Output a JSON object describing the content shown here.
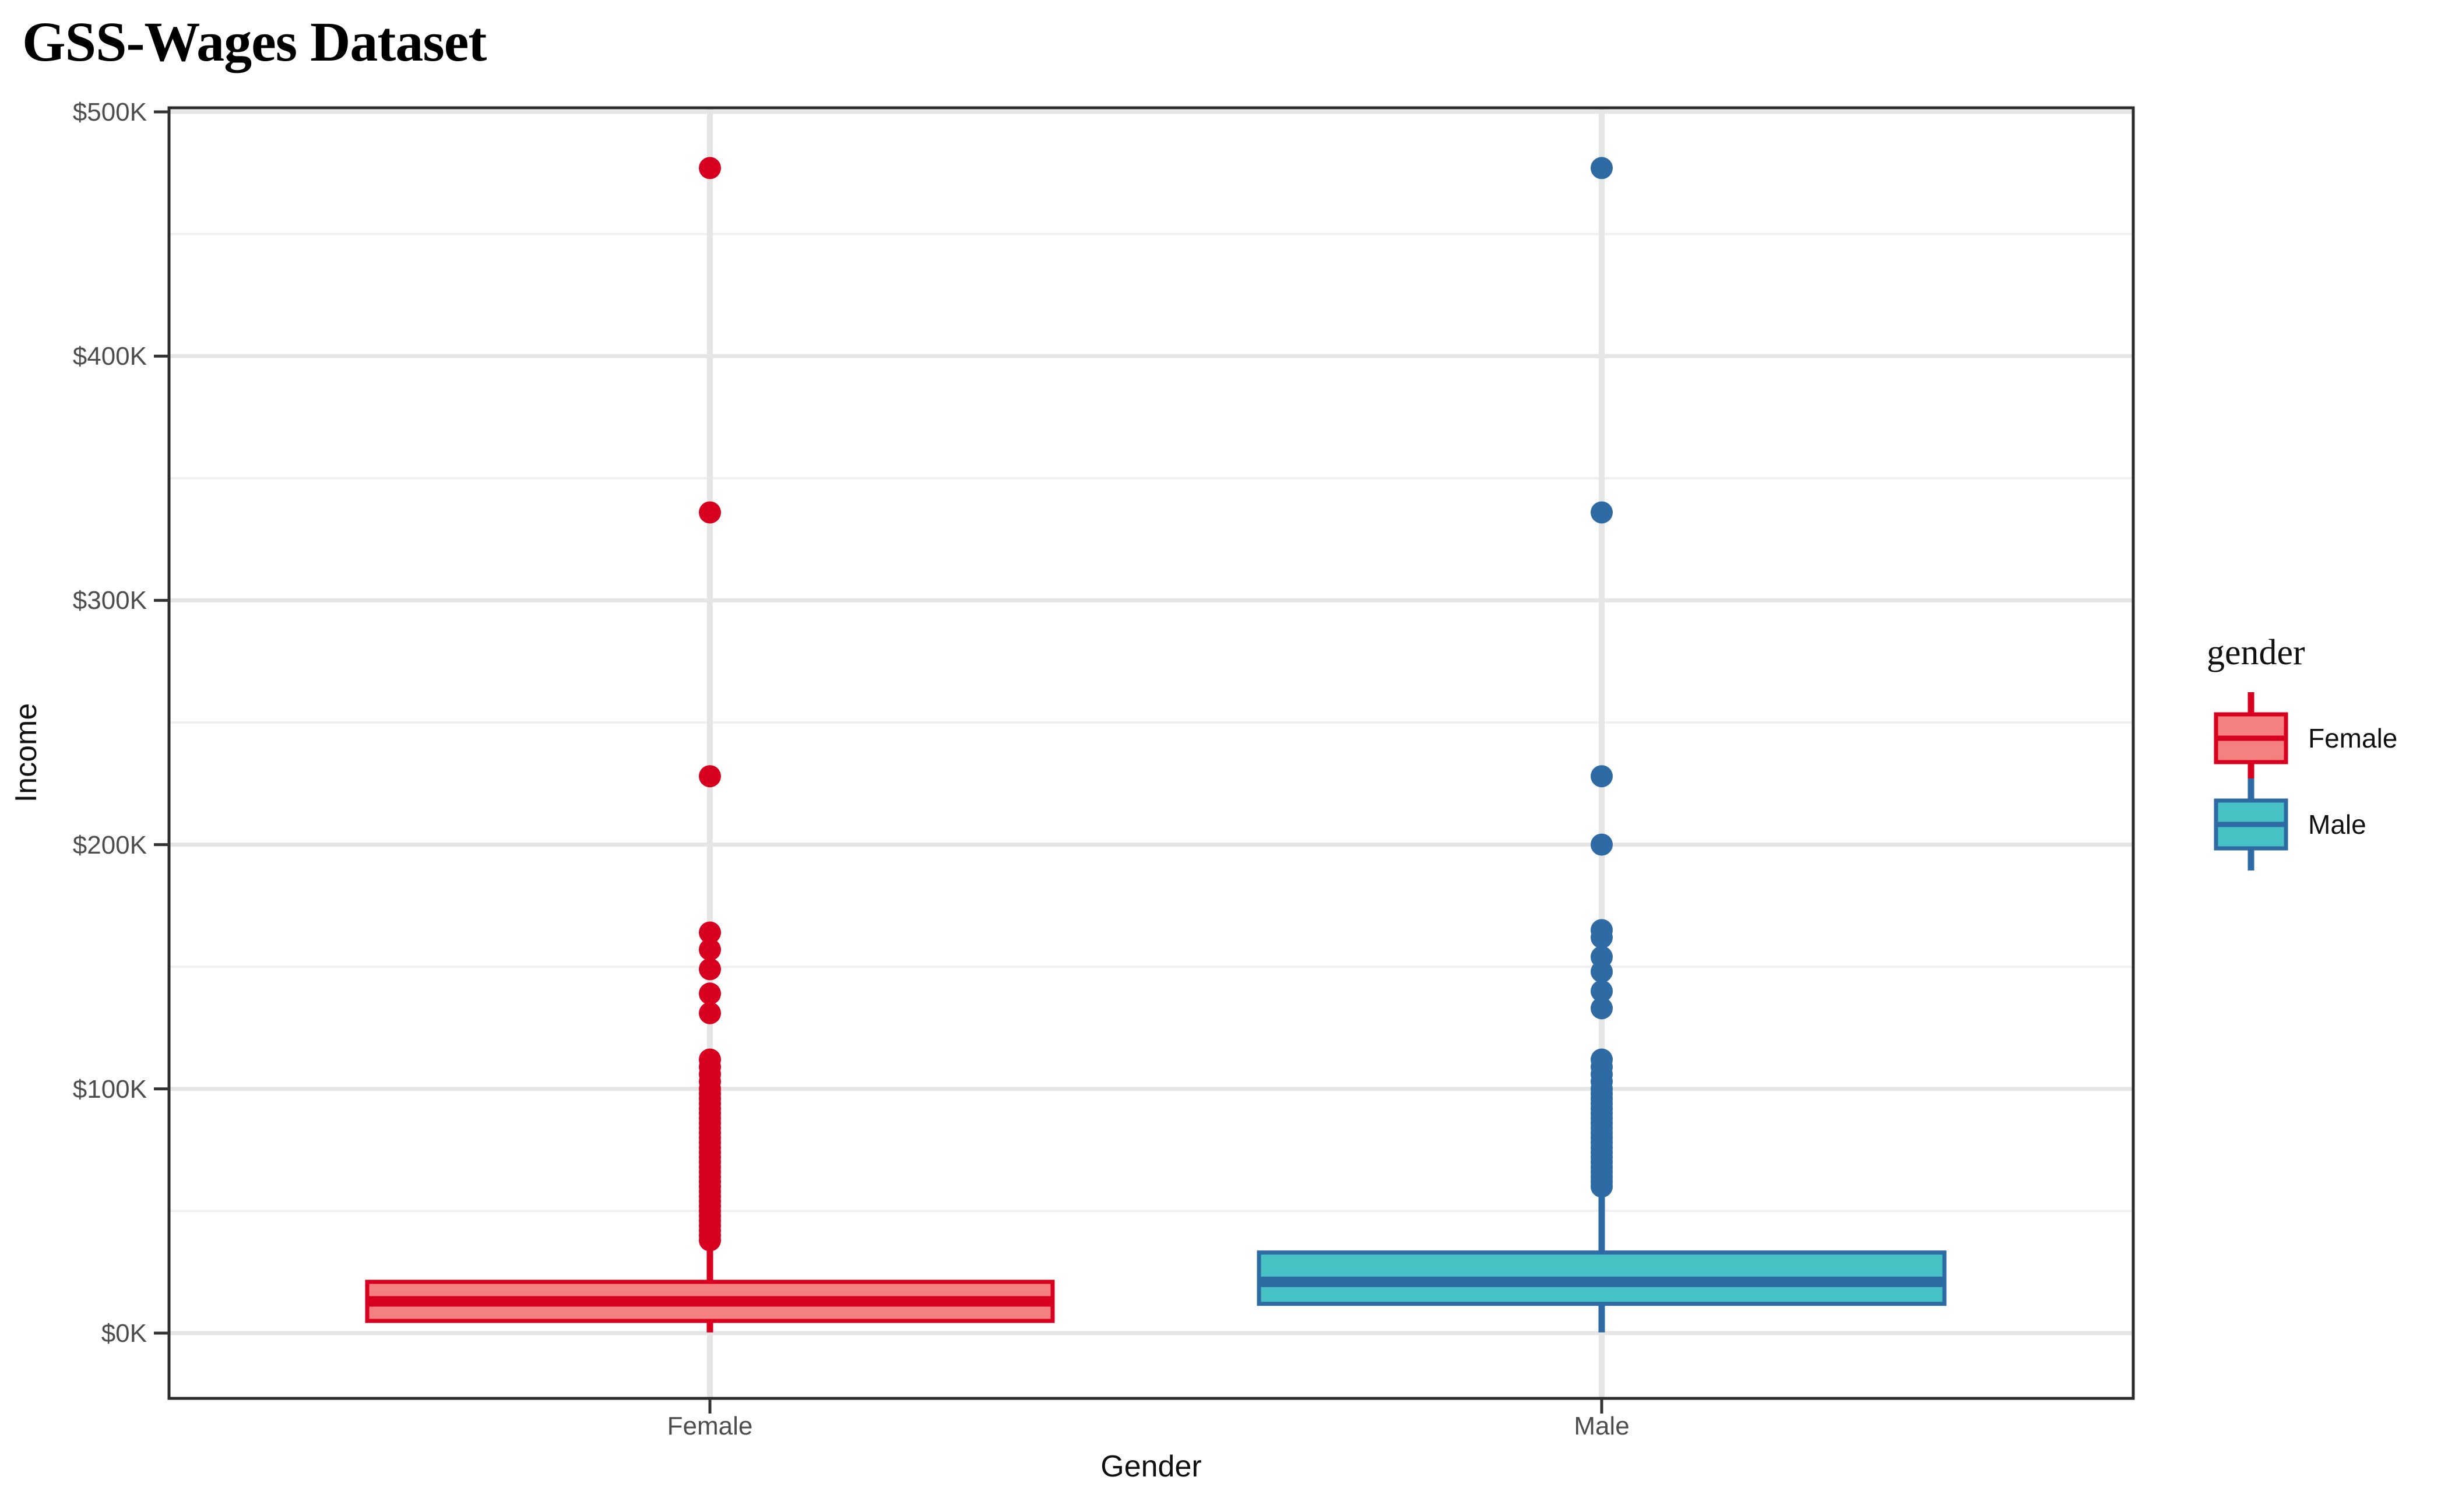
{
  "chart_data": {
    "type": "boxplot",
    "title": "GSS-Wages Dataset",
    "xlabel": "Gender",
    "ylabel": "Income",
    "categories": [
      "Female",
      "Male"
    ],
    "y_ticks": [
      {
        "value": 500,
        "label": "$500K"
      },
      {
        "value": 400,
        "label": "$400K"
      },
      {
        "value": 300,
        "label": "$300K"
      },
      {
        "value": 200,
        "label": "$200K"
      },
      {
        "value": 100,
        "label": "$100K"
      },
      {
        "value": 0,
        "label": "$0K"
      }
    ],
    "y_minor": [
      450,
      350,
      250,
      150,
      50
    ],
    "ylim": [
      -27,
      502
    ],
    "y_unit": "thousand dollars",
    "grid": true,
    "legend_position": "right",
    "series": [
      {
        "name": "Female",
        "color": "#d8001f",
        "fill": "#f58080",
        "box": {
          "whisker_low": 0.3,
          "q1": 5,
          "median": 13,
          "q3": 21,
          "whisker_high": 38
        },
        "outliers": [
          477,
          336,
          228,
          164,
          157,
          149,
          139,
          131,
          112,
          109,
          106,
          103,
          100,
          98,
          96,
          94,
          92,
          90,
          88,
          86,
          84,
          82,
          80,
          78,
          76,
          74,
          72,
          70,
          68,
          66,
          64,
          62,
          60,
          58,
          56,
          54,
          52,
          50,
          48,
          46,
          44,
          42,
          40,
          38
        ]
      },
      {
        "name": "Male",
        "color": "#2e6ba5",
        "fill": "#46c1c4",
        "box": {
          "whisker_low": 0.3,
          "q1": 12,
          "median": 21,
          "q3": 33,
          "whisker_high": 59
        },
        "outliers": [
          477,
          336,
          228,
          200,
          165,
          162,
          154,
          148,
          140,
          133,
          112,
          109,
          106,
          103,
          100,
          98,
          96,
          94,
          92,
          90,
          88,
          86,
          84,
          82,
          80,
          78,
          76,
          74,
          72,
          70,
          68,
          66,
          64,
          62,
          60
        ]
      }
    ],
    "legend": {
      "title": "gender",
      "items": [
        {
          "label": "Female"
        },
        {
          "label": "Male"
        }
      ]
    }
  }
}
